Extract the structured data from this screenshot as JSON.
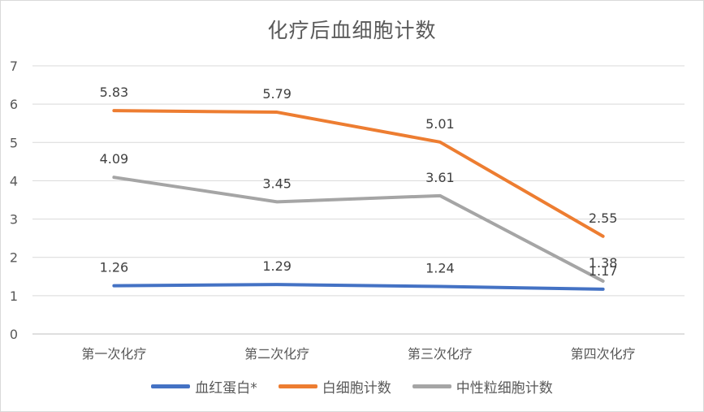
{
  "chart_data": {
    "type": "line",
    "title": "化疗后血细胞计数",
    "xlabel": "",
    "ylabel": "",
    "categories": [
      "第一次化疗",
      "第二次化疗",
      "第三次化疗",
      "第四次化疗"
    ],
    "ylim": [
      0,
      7
    ],
    "yticks": [
      "0",
      "1",
      "2",
      "3",
      "4",
      "5",
      "6",
      "7"
    ],
    "grid": true,
    "legend_position": "bottom",
    "series": [
      {
        "name": "血红蛋白*",
        "color": "#4472c4",
        "values": [
          1.26,
          1.29,
          1.24,
          1.17
        ],
        "labels": [
          "1.26",
          "1.29",
          "1.24",
          "1.17"
        ]
      },
      {
        "name": "白细胞计数",
        "color": "#ed7d31",
        "values": [
          5.83,
          5.79,
          5.01,
          2.55
        ],
        "labels": [
          "5.83",
          "5.79",
          "5.01",
          "2.55"
        ]
      },
      {
        "name": "中性粒细胞计数",
        "color": "#a5a5a5",
        "values": [
          4.09,
          3.45,
          3.61,
          1.38
        ],
        "labels": [
          "4.09",
          "3.45",
          "3.61",
          "1.38"
        ]
      }
    ]
  }
}
